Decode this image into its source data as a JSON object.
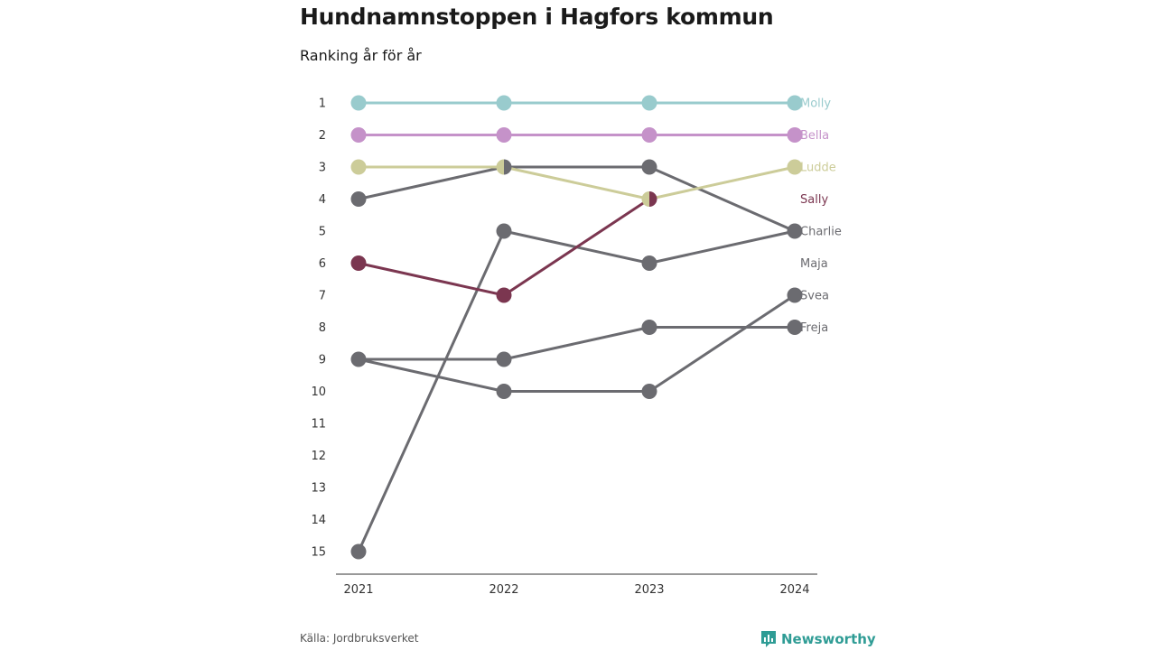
{
  "title": "Hundnamnstoppen i Hagfors kommun",
  "subtitle": "Ranking år för år",
  "source": "Källa: Jordbruksverket",
  "brand": "Newsworthy",
  "colors": {
    "brand": "#2f9c95"
  },
  "chart_data": {
    "type": "line",
    "subtype": "bump",
    "x": [
      "2021",
      "2022",
      "2023",
      "2024"
    ],
    "yticks": [
      1,
      2,
      3,
      4,
      5,
      6,
      7,
      8,
      9,
      10,
      11,
      12,
      13,
      14,
      15
    ],
    "ylim": [
      1,
      15
    ],
    "y_reversed": true,
    "grid": false,
    "legend": "direct labels at right end",
    "series": [
      {
        "name": "Molly",
        "values": [
          1,
          1,
          1,
          1
        ],
        "color": "#99cbcd"
      },
      {
        "name": "Bella",
        "values": [
          2,
          2,
          2,
          2
        ],
        "color": "#c592c9"
      },
      {
        "name": "Ludde",
        "values": [
          3,
          3,
          4,
          3
        ],
        "color": "#cccc99"
      },
      {
        "name": "Sally",
        "values": [
          6,
          7,
          4,
          null
        ],
        "color": "#7b3650"
      },
      {
        "name": "Charlie",
        "values": [
          4,
          3,
          3,
          5
        ],
        "color": "#6b6b70"
      },
      {
        "name": "Maja",
        "values": [
          15,
          5,
          6,
          5
        ],
        "color": "#6b6b70"
      },
      {
        "name": "Svea",
        "values": [
          9,
          10,
          10,
          7
        ],
        "color": "#6b6b70"
      },
      {
        "name": "Freja",
        "values": [
          9,
          9,
          8,
          8
        ],
        "color": "#6b6b70"
      }
    ],
    "label_ranks": {
      "Molly": 1,
      "Bella": 2,
      "Ludde": 3,
      "Sally": 4,
      "Charlie": 5,
      "Maja": 6,
      "Svea": 7,
      "Freja": 8
    }
  }
}
